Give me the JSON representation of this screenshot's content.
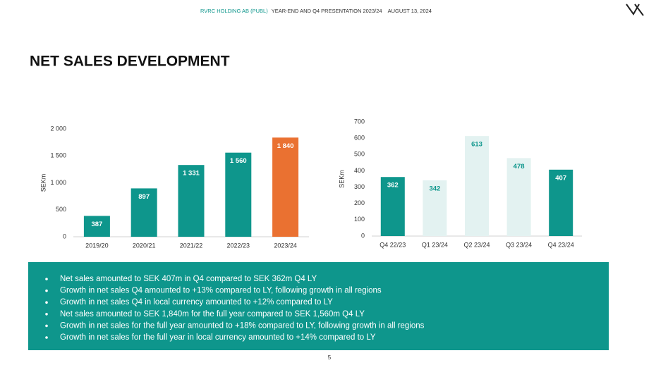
{
  "header": {
    "company": "RVRC HOLDING AB (PUBL)",
    "presentation": "YEAR-END AND Q4 PRESENTATION 2023/24",
    "date": "AUGUST 13, 2024"
  },
  "title": "NET SALES DEVELOPMENT",
  "chart_data": [
    {
      "type": "bar",
      "ylabel": "SEKm",
      "categories": [
        "2019/20",
        "2020/21",
        "2021/22",
        "2022/23",
        "2023/24"
      ],
      "values": [
        387,
        897,
        1331,
        1560,
        1840
      ],
      "value_labels": [
        "387",
        "897",
        "1 331",
        "1 560",
        "1 840"
      ],
      "colors": [
        "#0e968c",
        "#0e968c",
        "#0e968c",
        "#0e968c",
        "#ea7131"
      ],
      "ylim": [
        0,
        2000
      ],
      "yticks": [
        0,
        500,
        {
          "value": 1000,
          "label": "1 000"
        },
        {
          "value": 1500,
          "label": "1 500"
        },
        {
          "value": 2000,
          "label": "2 000"
        }
      ],
      "grid": false
    },
    {
      "type": "bar",
      "ylabel": "SEKm",
      "categories": [
        "Q4 22/23",
        "Q1 23/24",
        "Q2 23/24",
        "Q3 23/24",
        "Q4 23/24"
      ],
      "values": [
        362,
        342,
        613,
        478,
        407
      ],
      "colors": [
        "#0e968c",
        "#e3f2f1",
        "#e3f2f1",
        "#e3f2f1",
        "#0e968c"
      ],
      "ylim": [
        0,
        700
      ],
      "yticks": [
        0,
        100,
        200,
        300,
        400,
        500,
        600,
        700
      ],
      "grid": false
    }
  ],
  "bullets": [
    "Net sales amounted to SEK 407m in Q4 compared to SEK 362m Q4 LY",
    "Growth in net sales Q4 amounted to +13% compared to LY, following growth in all regions",
    "Growth in net sales Q4 in local currency amounted to +12% compared to LY",
    "Net sales amounted to SEK 1,840m for the full year compared to SEK 1,560m Q4 LY",
    "Growth in net sales for the full year amounted to +18% compared to LY, following growth in all regions",
    "Growth in net sales for the full year in local currency amounted to +14% compared to LY"
  ],
  "page_number": "5"
}
